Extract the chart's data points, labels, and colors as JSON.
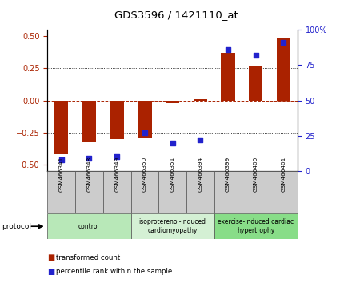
{
  "title": "GDS3596 / 1421110_at",
  "samples": [
    "GSM466341",
    "GSM466348",
    "GSM466349",
    "GSM466350",
    "GSM466351",
    "GSM466394",
    "GSM466399",
    "GSM466400",
    "GSM466401"
  ],
  "red_bars": [
    -0.42,
    -0.32,
    -0.3,
    -0.285,
    -0.02,
    0.01,
    0.37,
    0.27,
    0.48
  ],
  "blue_pct": [
    8,
    9,
    10,
    27,
    20,
    22,
    86,
    82,
    91
  ],
  "groups": [
    {
      "label": "control",
      "start": 0,
      "end": 3,
      "color": "#b8e8b8"
    },
    {
      "label": "isoproterenol-induced\ncardiomyopathy",
      "start": 3,
      "end": 6,
      "color": "#d4f0d4"
    },
    {
      "label": "exercise-induced cardiac\nhypertrophy",
      "start": 6,
      "end": 9,
      "color": "#88dd88"
    }
  ],
  "ylim_left": [
    -0.55,
    0.55
  ],
  "ylim_right": [
    0,
    100
  ],
  "yticks_left": [
    -0.5,
    -0.25,
    0,
    0.25,
    0.5
  ],
  "yticks_right": [
    0,
    25,
    50,
    75,
    100
  ],
  "red_color": "#aa2200",
  "blue_color": "#2222cc",
  "bar_width": 0.5,
  "dot_size": 22,
  "legend_red": "transformed count",
  "legend_blue": "percentile rank within the sample",
  "protocol_label": "protocol"
}
